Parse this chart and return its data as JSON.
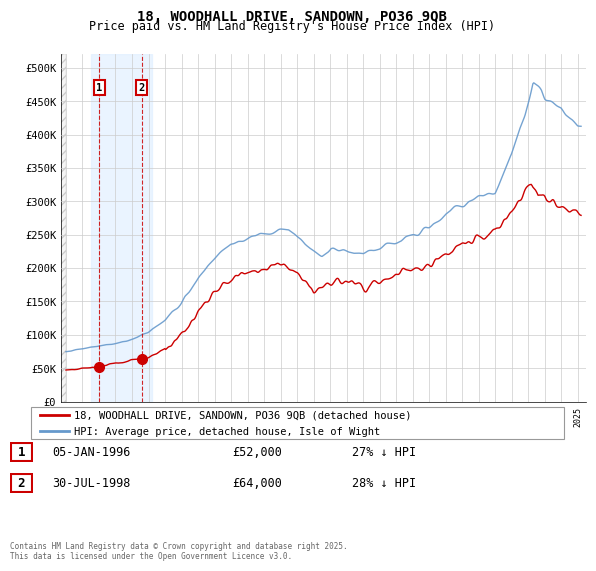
{
  "title": "18, WOODHALL DRIVE, SANDOWN, PO36 9QB",
  "subtitle": "Price paid vs. HM Land Registry's House Price Index (HPI)",
  "legend_line1": "18, WOODHALL DRIVE, SANDOWN, PO36 9QB (detached house)",
  "legend_line2": "HPI: Average price, detached house, Isle of Wight",
  "footer": "Contains HM Land Registry data © Crown copyright and database right 2025.\nThis data is licensed under the Open Government Licence v3.0.",
  "transaction1_date": "05-JAN-1996",
  "transaction1_price": "£52,000",
  "transaction1_pct": "27% ↓ HPI",
  "transaction2_date": "30-JUL-1998",
  "transaction2_price": "£64,000",
  "transaction2_pct": "28% ↓ HPI",
  "price_color": "#cc0000",
  "hpi_color": "#6699cc",
  "ylim": [
    0,
    520000
  ],
  "yticks": [
    0,
    50000,
    100000,
    150000,
    200000,
    250000,
    300000,
    350000,
    400000,
    450000,
    500000
  ],
  "xlim_start": 1993.7,
  "xlim_end": 2025.5,
  "transaction1_x": 1996.03,
  "transaction2_x": 1998.58,
  "shade_start": 1995.5,
  "shade_end": 1999.2,
  "hatch_end": 1994.0
}
